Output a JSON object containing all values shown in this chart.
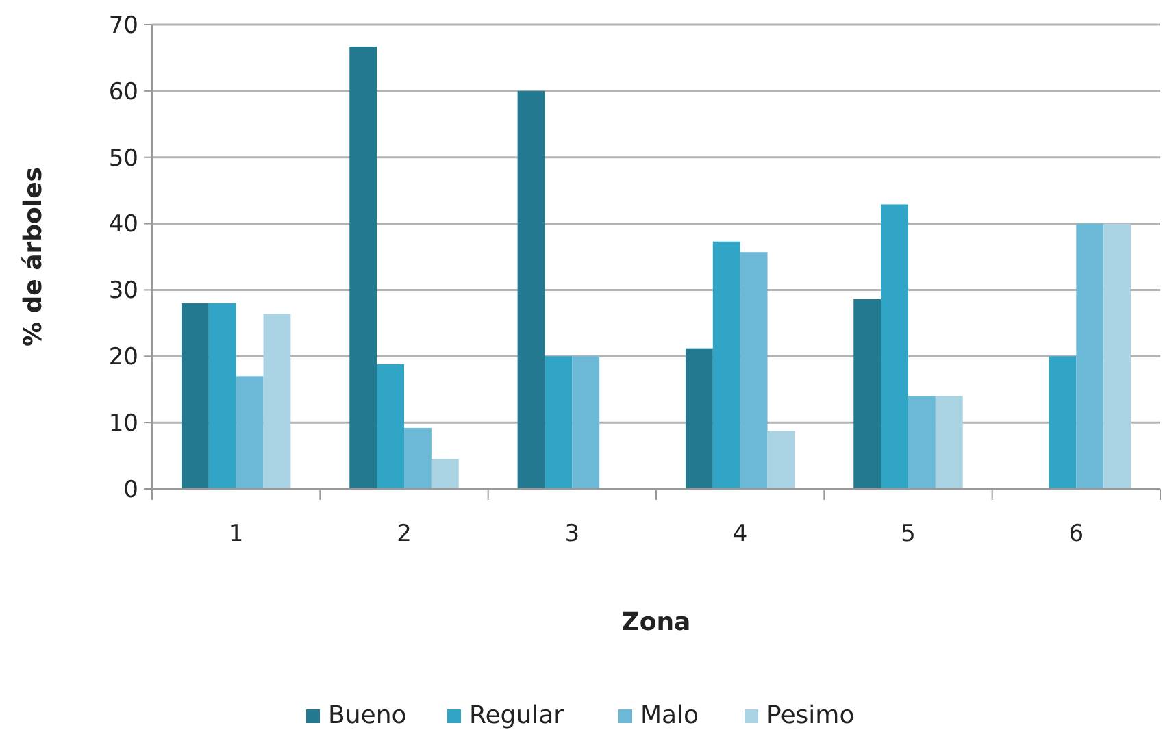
{
  "chart_data": {
    "type": "bar",
    "xlabel": "Zona",
    "ylabel": "% de árboles",
    "categories": [
      "1",
      "2",
      "3",
      "4",
      "5",
      "6"
    ],
    "series": [
      {
        "name": "Bueno",
        "color": "#23798f",
        "values": [
          28,
          66.7,
          60,
          21.2,
          28.6,
          0
        ]
      },
      {
        "name": "Regular",
        "color": "#31a5c6",
        "values": [
          28,
          18.8,
          20,
          37.3,
          42.9,
          20
        ]
      },
      {
        "name": "Malo",
        "color": "#6bb9d6",
        "values": [
          17,
          9.2,
          20,
          35.7,
          14,
          40
        ]
      },
      {
        "name": "Pesimo",
        "color": "#a9d2e2",
        "values": [
          26.4,
          4.5,
          0,
          8.7,
          14,
          40
        ]
      }
    ],
    "ylim": [
      0,
      70
    ],
    "yticks": [
      0,
      10,
      20,
      30,
      40,
      50,
      60,
      70
    ],
    "grid": "y",
    "legend": "bottom"
  }
}
